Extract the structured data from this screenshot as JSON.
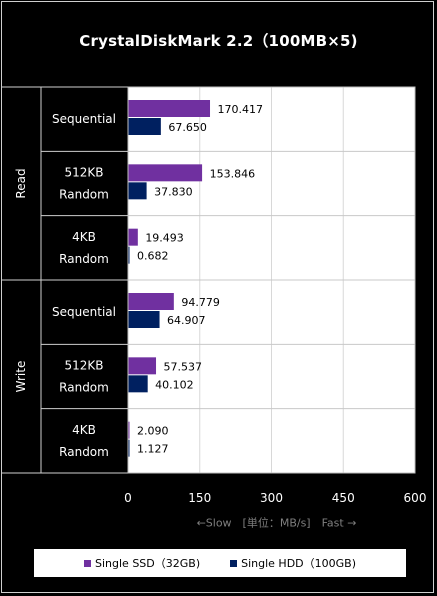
{
  "chart_data": {
    "type": "bar",
    "orientation": "horizontal",
    "title": "CrystalDiskMark 2.2（100MB×5)",
    "xlabel": "←Slow　[単位：MB/s]　Fast →",
    "xlim": [
      0,
      600
    ],
    "xticks": [
      "0",
      "150",
      "300",
      "450",
      "600"
    ],
    "groups": [
      {
        "label": "Read",
        "categories": [
          [
            "Sequential"
          ],
          [
            "512KB",
            "Random"
          ],
          [
            "4KB",
            "Random"
          ]
        ]
      },
      {
        "label": "Write",
        "categories": [
          [
            "Sequential"
          ],
          [
            "512KB",
            "Random"
          ],
          [
            "4KB",
            "Random"
          ]
        ]
      }
    ],
    "series": [
      {
        "name": "Single SSD（32GB)",
        "color": "#7030a0",
        "values": [
          170.417,
          153.846,
          19.493,
          94.779,
          57.537,
          2.09
        ],
        "labels": [
          "170.417",
          "153.846",
          "19.493",
          "94.779",
          "57.537",
          "2.090"
        ]
      },
      {
        "name": "Single HDD（100GB)",
        "color": "#002060",
        "values": [
          67.65,
          37.83,
          0.682,
          64.907,
          40.102,
          1.127
        ],
        "labels": [
          "67.650",
          "37.830",
          "0.682",
          "64.907",
          "40.102",
          "1.127"
        ]
      }
    ],
    "grid": true,
    "legend_position": "bottom"
  }
}
